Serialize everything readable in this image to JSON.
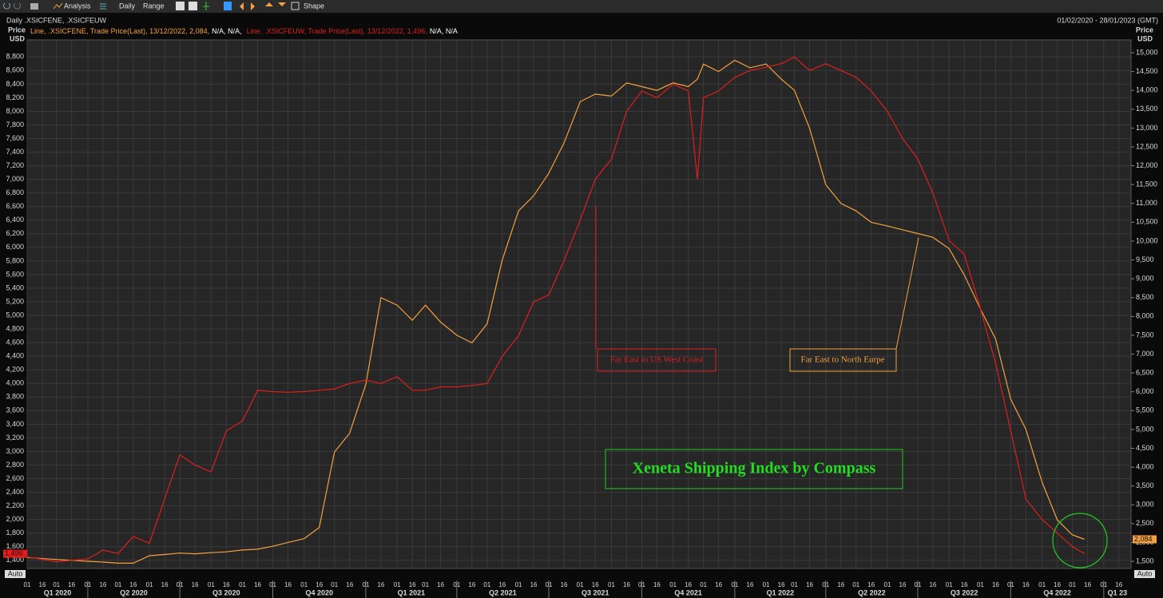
{
  "toolbar": {
    "items": [
      "Analysis",
      "Daily",
      "Range",
      "Shape"
    ]
  },
  "chart_data": {
    "type": "line",
    "title": "Daily .XSICFENE, .XSICFEUW",
    "subtitle": "01/02/2020 - 28/01/2023 (GMT)",
    "ylabel": [
      "Price",
      "USD"
    ],
    "y2label": [
      "Price",
      "USD"
    ],
    "auto_labels": [
      "Auto",
      "Auto"
    ],
    "grid": true,
    "x": [
      "2020-02-01",
      "2020-03-01",
      "2020-04-01",
      "2020-04-16",
      "2020-05-01",
      "2020-05-16",
      "2020-06-01",
      "2020-06-16",
      "2020-07-01",
      "2020-07-16",
      "2020-08-01",
      "2020-08-16",
      "2020-09-01",
      "2020-09-16",
      "2020-10-01",
      "2020-10-16",
      "2020-11-01",
      "2020-11-16",
      "2020-12-01",
      "2020-12-16",
      "2021-01-01",
      "2021-01-16",
      "2021-02-01",
      "2021-02-16",
      "2021-03-01",
      "2021-03-16",
      "2021-04-01",
      "2021-04-16",
      "2021-05-01",
      "2021-05-16",
      "2021-06-01",
      "2021-06-16",
      "2021-07-01",
      "2021-07-16",
      "2021-08-01",
      "2021-08-16",
      "2021-09-01",
      "2021-09-16",
      "2021-10-01",
      "2021-10-16",
      "2021-11-01",
      "2021-11-16",
      "2021-11-25",
      "2021-12-01",
      "2021-12-16",
      "2022-01-01",
      "2022-01-16",
      "2022-02-01",
      "2022-02-16",
      "2022-03-01",
      "2022-03-16",
      "2022-04-01",
      "2022-04-16",
      "2022-05-01",
      "2022-05-16",
      "2022-06-01",
      "2022-06-16",
      "2022-07-01",
      "2022-07-16",
      "2022-08-01",
      "2022-08-16",
      "2022-09-01",
      "2022-09-16",
      "2022-10-01",
      "2022-10-16",
      "2022-11-01",
      "2022-11-16",
      "2022-12-01",
      "2022-12-13"
    ],
    "series": [
      {
        "name": ".XSICFENE",
        "legend_prefix": "Line,",
        "legend_suffix": ", Trade Price(Last), 13/12/2022, 2,084,",
        "legend_na": "N/A, N/A,",
        "end_label": "2,084",
        "color": "#f5a040",
        "axis": "y2",
        "values": [
          1600,
          1550,
          1500,
          1480,
          1450,
          1450,
          1650,
          1680,
          1720,
          1700,
          1730,
          1750,
          1800,
          1820,
          1900,
          2000,
          2100,
          2400,
          4400,
          4900,
          6200,
          8500,
          8300,
          7900,
          8300,
          7850,
          7500,
          7300,
          7800,
          9500,
          10800,
          11200,
          11800,
          12600,
          13700,
          13900,
          13850,
          14200,
          14100,
          14000,
          14200,
          14100,
          14300,
          14700,
          14500,
          14800,
          14600,
          14700,
          14300,
          14000,
          13000,
          11500,
          11000,
          10800,
          10500,
          10400,
          10300,
          10200,
          10100,
          9800,
          9100,
          8200,
          7400,
          5800,
          5000,
          3600,
          2600,
          2200,
          2084
        ]
      },
      {
        "name": ".XSICFEUW",
        "legend_prefix": "Line,",
        "legend_suffix": ", Trade Price(Last), 13/12/2022, 1,496,",
        "legend_na": "N/A, N/A",
        "end_label": "1,496",
        "color": "#e01e1e",
        "axis": "y",
        "values": [
          1450,
          1380,
          1420,
          1550,
          1500,
          1750,
          1650,
          2300,
          2950,
          2800,
          2700,
          3300,
          3450,
          3900,
          3880,
          3870,
          3880,
          3900,
          3920,
          4000,
          4050,
          4000,
          4100,
          3900,
          3900,
          3950,
          3950,
          3970,
          4000,
          4400,
          4700,
          5200,
          5300,
          5800,
          6400,
          7000,
          7300,
          8000,
          8300,
          8200,
          8400,
          8300,
          7000,
          8200,
          8300,
          8500,
          8600,
          8650,
          8700,
          8800,
          8600,
          8700,
          8600,
          8500,
          8300,
          8000,
          7600,
          7300,
          6800,
          6100,
          5900,
          5100,
          4300,
          3300,
          2300,
          2000,
          1800,
          1600,
          1496
        ]
      }
    ],
    "xlim": [
      "2020-02-01",
      "2023-01-28"
    ],
    "ylim": [
      1280,
      9050
    ],
    "y2lim": [
      1310,
      15340
    ],
    "yticks": [
      {
        "value": 1400,
        "label": "1,400"
      },
      {
        "value": 1600,
        "label": "1,600"
      },
      {
        "value": 1800,
        "label": "1,800"
      },
      {
        "value": 2000,
        "label": "2,000"
      },
      {
        "value": 2200,
        "label": "2,200"
      },
      {
        "value": 2400,
        "label": "2,400"
      },
      {
        "value": 2600,
        "label": "2,600"
      },
      {
        "value": 2800,
        "label": "2,800"
      },
      {
        "value": 3000,
        "label": "3,000"
      },
      {
        "value": 3200,
        "label": "3,200"
      },
      {
        "value": 3400,
        "label": "3,400"
      },
      {
        "value": 3600,
        "label": "3,600"
      },
      {
        "value": 3800,
        "label": "3,800"
      },
      {
        "value": 4000,
        "label": "4,000"
      },
      {
        "value": 4200,
        "label": "4,200"
      },
      {
        "value": 4400,
        "label": "4,400"
      },
      {
        "value": 4600,
        "label": "4,600"
      },
      {
        "value": 4800,
        "label": "4,800"
      },
      {
        "value": 5000,
        "label": "5,000"
      },
      {
        "value": 5200,
        "label": "5,200"
      },
      {
        "value": 5400,
        "label": "5,400"
      },
      {
        "value": 5600,
        "label": "5,600"
      },
      {
        "value": 5800,
        "label": "5,800"
      },
      {
        "value": 6000,
        "label": "6,000"
      },
      {
        "value": 6200,
        "label": "6,200"
      },
      {
        "value": 6400,
        "label": "6,400"
      },
      {
        "value": 6600,
        "label": "6,600"
      },
      {
        "value": 6800,
        "label": "6,800"
      },
      {
        "value": 7000,
        "label": "7,000"
      },
      {
        "value": 7200,
        "label": "7,200"
      },
      {
        "value": 7400,
        "label": "7,400"
      },
      {
        "value": 7600,
        "label": "7,600"
      },
      {
        "value": 7800,
        "label": "7,800"
      },
      {
        "value": 8000,
        "label": "8,000"
      },
      {
        "value": 8200,
        "label": "8,200"
      },
      {
        "value": 8400,
        "label": "8,400"
      },
      {
        "value": 8600,
        "label": "8,600"
      },
      {
        "value": 8800,
        "label": "8,800"
      }
    ],
    "y2ticks": [
      {
        "value": 1500,
        "label": "1,500"
      },
      {
        "value": 2000,
        "label": "2,000"
      },
      {
        "value": 2500,
        "label": "2,500"
      },
      {
        "value": 3000,
        "label": "3,000"
      },
      {
        "value": 3500,
        "label": "3,500"
      },
      {
        "value": 4000,
        "label": "4,000"
      },
      {
        "value": 4500,
        "label": "4,500"
      },
      {
        "value": 5000,
        "label": "5,000"
      },
      {
        "value": 5500,
        "label": "5,500"
      },
      {
        "value": 6000,
        "label": "6,000"
      },
      {
        "value": 6500,
        "label": "6,500"
      },
      {
        "value": 7000,
        "label": "7,000"
      },
      {
        "value": 7500,
        "label": "7,500"
      },
      {
        "value": 8000,
        "label": "8,000"
      },
      {
        "value": 8500,
        "label": "8,500"
      },
      {
        "value": 9000,
        "label": "9,000"
      },
      {
        "value": 9500,
        "label": "9,500"
      },
      {
        "value": 10000,
        "label": "10,000"
      },
      {
        "value": 10500,
        "label": "10,500"
      },
      {
        "value": 11000,
        "label": "11,000"
      },
      {
        "value": 11500,
        "label": "11,500"
      },
      {
        "value": 12000,
        "label": "12,000"
      },
      {
        "value": 12500,
        "label": "12,500"
      },
      {
        "value": 13000,
        "label": "13,000"
      },
      {
        "value": 13500,
        "label": "13,500"
      },
      {
        "value": 14000,
        "label": "14,000"
      },
      {
        "value": 14500,
        "label": "14,500"
      },
      {
        "value": 15000,
        "label": "15,000"
      }
    ],
    "xticks": [
      {
        "value": "2020-02-01",
        "label": "01"
      },
      {
        "value": "2020-02-16",
        "label": "16"
      },
      {
        "value": "2020-03-01",
        "label": "01"
      },
      {
        "value": "2020-03-16",
        "label": "16"
      },
      {
        "value": "2020-04-01",
        "label": "01"
      },
      {
        "value": "2020-04-16",
        "label": "16"
      },
      {
        "value": "2020-05-01",
        "label": "01"
      },
      {
        "value": "2020-05-16",
        "label": "16"
      },
      {
        "value": "2020-06-01",
        "label": "01"
      },
      {
        "value": "2020-06-16",
        "label": "16"
      },
      {
        "value": "2020-07-01",
        "label": "01"
      },
      {
        "value": "2020-07-16",
        "label": "16"
      },
      {
        "value": "2020-08-01",
        "label": "01"
      },
      {
        "value": "2020-08-16",
        "label": "16"
      },
      {
        "value": "2020-09-01",
        "label": "01"
      },
      {
        "value": "2020-09-16",
        "label": "16"
      },
      {
        "value": "2020-10-01",
        "label": "01"
      },
      {
        "value": "2020-10-16",
        "label": "16"
      },
      {
        "value": "2020-11-01",
        "label": "01"
      },
      {
        "value": "2020-11-16",
        "label": "16"
      },
      {
        "value": "2020-12-01",
        "label": "01"
      },
      {
        "value": "2020-12-16",
        "label": "16"
      },
      {
        "value": "2021-01-01",
        "label": "01"
      },
      {
        "value": "2021-01-16",
        "label": "16"
      },
      {
        "value": "2021-02-01",
        "label": "01"
      },
      {
        "value": "2021-02-16",
        "label": "16"
      },
      {
        "value": "2021-03-01",
        "label": "01"
      },
      {
        "value": "2021-03-16",
        "label": "16"
      },
      {
        "value": "2021-04-01",
        "label": "01"
      },
      {
        "value": "2021-04-16",
        "label": "16"
      },
      {
        "value": "2021-05-01",
        "label": "01"
      },
      {
        "value": "2021-05-16",
        "label": "16"
      },
      {
        "value": "2021-06-01",
        "label": "01"
      },
      {
        "value": "2021-06-16",
        "label": "16"
      },
      {
        "value": "2021-07-01",
        "label": "01"
      },
      {
        "value": "2021-07-16",
        "label": "16"
      },
      {
        "value": "2021-08-01",
        "label": "01"
      },
      {
        "value": "2021-08-16",
        "label": "16"
      },
      {
        "value": "2021-09-01",
        "label": "01"
      },
      {
        "value": "2021-09-16",
        "label": "16"
      },
      {
        "value": "2021-10-01",
        "label": "01"
      },
      {
        "value": "2021-10-16",
        "label": "16"
      },
      {
        "value": "2021-11-01",
        "label": "01"
      },
      {
        "value": "2021-11-16",
        "label": "16"
      },
      {
        "value": "2021-12-01",
        "label": "01"
      },
      {
        "value": "2021-12-16",
        "label": "16"
      },
      {
        "value": "2022-01-01",
        "label": "01"
      },
      {
        "value": "2022-01-16",
        "label": "16"
      },
      {
        "value": "2022-02-01",
        "label": "01"
      },
      {
        "value": "2022-02-16",
        "label": "16"
      },
      {
        "value": "2022-03-01",
        "label": "01"
      },
      {
        "value": "2022-03-16",
        "label": "16"
      },
      {
        "value": "2022-04-01",
        "label": "01"
      },
      {
        "value": "2022-04-16",
        "label": "16"
      },
      {
        "value": "2022-05-01",
        "label": "01"
      },
      {
        "value": "2022-05-16",
        "label": "16"
      },
      {
        "value": "2022-06-01",
        "label": "01"
      },
      {
        "value": "2022-06-16",
        "label": "16"
      },
      {
        "value": "2022-07-01",
        "label": "01"
      },
      {
        "value": "2022-07-16",
        "label": "16"
      },
      {
        "value": "2022-08-01",
        "label": "01"
      },
      {
        "value": "2022-08-16",
        "label": "16"
      },
      {
        "value": "2022-09-01",
        "label": "01"
      },
      {
        "value": "2022-09-16",
        "label": "16"
      },
      {
        "value": "2022-10-01",
        "label": "01"
      },
      {
        "value": "2022-10-16",
        "label": "16"
      },
      {
        "value": "2022-11-01",
        "label": "01"
      },
      {
        "value": "2022-11-16",
        "label": "16"
      },
      {
        "value": "2022-12-01",
        "label": "01"
      },
      {
        "value": "2022-12-16",
        "label": "16"
      },
      {
        "value": "2023-01-01",
        "label": "01"
      },
      {
        "value": "2023-01-16",
        "label": "16"
      }
    ],
    "quarter_labels": [
      {
        "value": "2020-01-01",
        "label": "Q1 2020"
      },
      {
        "value": "2020-04-01",
        "label": "Q2 2020"
      },
      {
        "value": "2020-07-01",
        "label": "Q3 2020"
      },
      {
        "value": "2020-10-01",
        "label": "Q4 2020"
      },
      {
        "value": "2021-01-01",
        "label": "Q1 2021"
      },
      {
        "value": "2021-04-01",
        "label": "Q2 2021"
      },
      {
        "value": "2021-07-01",
        "label": "Q3 2021"
      },
      {
        "value": "2021-10-01",
        "label": "Q4 2021"
      },
      {
        "value": "2022-01-01",
        "label": "Q1 2022"
      },
      {
        "value": "2022-04-01",
        "label": "Q2 2022"
      },
      {
        "value": "2022-07-01",
        "label": "Q3 2022"
      },
      {
        "value": "2022-10-01",
        "label": "Q4 2022"
      },
      {
        "value": "2023-01-01",
        "label": "Q1 23"
      }
    ],
    "annotations": [
      "Far East to US West Coast",
      "Far East to North Eurpe",
      "Xeneta Shipping Index by Compass"
    ]
  }
}
